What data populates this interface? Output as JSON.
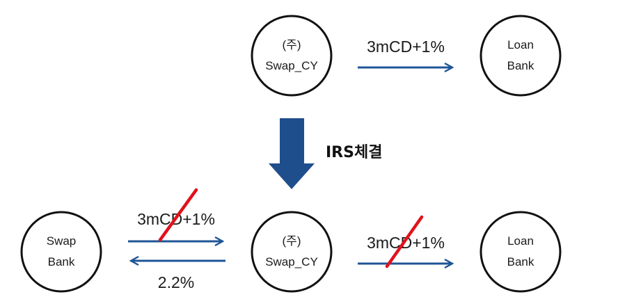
{
  "colors": {
    "arrow": "#1f5596",
    "big_arrow": "#1f4e8c",
    "strike": "#e0121b",
    "node_stroke": "#111111"
  },
  "top": {
    "company": {
      "line1": "(주)",
      "line2": "Swap_CY"
    },
    "loan_bank": {
      "line1": "Loan",
      "line2": "Bank"
    },
    "flow_label": "3mCD+1%"
  },
  "transition": {
    "label": "IRS체결",
    "icon": "down-arrow-icon"
  },
  "bottom": {
    "swap_bank": {
      "line1": "Swap",
      "line2": "Bank"
    },
    "company": {
      "line1": "(주)",
      "line2": "Swap_CY"
    },
    "loan_bank": {
      "line1": "Loan",
      "line2": "Bank"
    },
    "flow_to_swap_bank_label": "3mCD+1%",
    "flow_from_swap_bank_label": "2.2%",
    "flow_to_loan_bank_label": "3mCD+1%"
  }
}
